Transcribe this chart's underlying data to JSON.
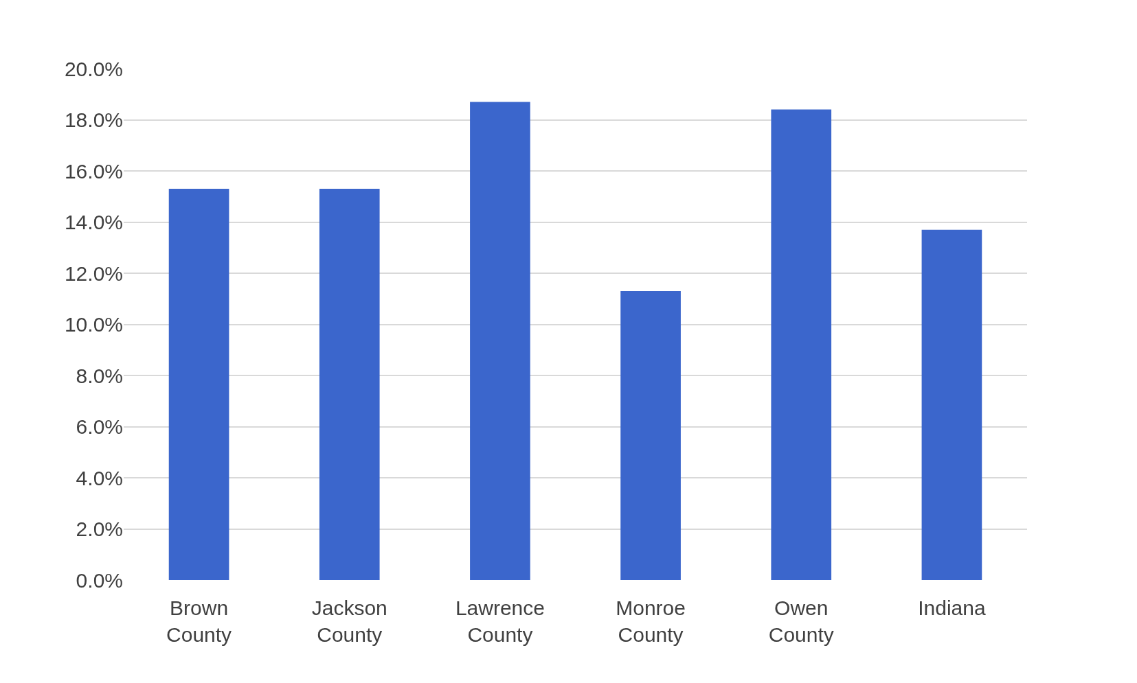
{
  "chart_data": {
    "type": "bar",
    "categories": [
      "Brown County",
      "Jackson County",
      "Lawrence County",
      "Monroe County",
      "Owen County",
      "Indiana"
    ],
    "values": [
      15.3,
      15.3,
      18.7,
      11.3,
      18.4,
      13.7
    ],
    "color": "#3b66cc",
    "ylim": [
      0,
      20
    ],
    "yticks": [
      {
        "value": 0,
        "label": "0.0%"
      },
      {
        "value": 2,
        "label": "2.0%"
      },
      {
        "value": 4,
        "label": "4.0%"
      },
      {
        "value": 6,
        "label": "6.0%"
      },
      {
        "value": 8,
        "label": "8.0%"
      },
      {
        "value": 10,
        "label": "10.0%"
      },
      {
        "value": 12,
        "label": "12.0%"
      },
      {
        "value": 14,
        "label": "14.0%"
      },
      {
        "value": 16,
        "label": "16.0%"
      },
      {
        "value": 18,
        "label": "18.0%"
      },
      {
        "value": 20,
        "label": "20.0%"
      }
    ],
    "grid": "y"
  }
}
